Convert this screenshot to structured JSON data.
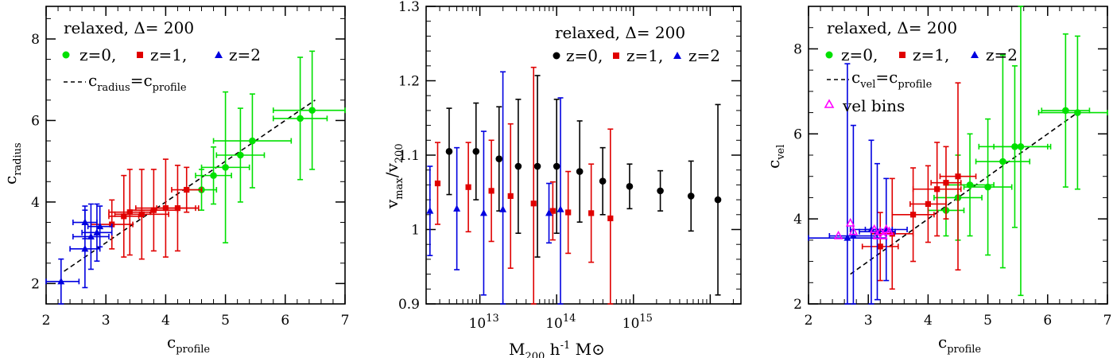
{
  "chart_data": [
    {
      "id": "left",
      "type": "scatter",
      "xlabel": "c_profile",
      "ylabel": "c_radius",
      "xlim": [
        2,
        7
      ],
      "ylim": [
        1.5,
        8.8
      ],
      "xticks": [
        2,
        3,
        4,
        5,
        6,
        7
      ],
      "yticks": [
        2,
        4,
        6,
        8
      ],
      "legend": {
        "title": "relaxed, Δ= 200",
        "entries": [
          "z=0,",
          "z=1,",
          "z=2"
        ],
        "line_label_main": "c",
        "line_label_sub1": "radius",
        "line_label_eq": "=c",
        "line_label_sub2": "profile"
      },
      "reference_line": {
        "x": [
          2.3,
          6.5
        ],
        "y": [
          2.3,
          6.5
        ]
      },
      "series": [
        {
          "name": "z=0",
          "color": "#00e000",
          "marker": "circle",
          "points": [
            {
              "x": 4.6,
              "y": 4.3,
              "xerr": 0.25,
              "yerr": 0.5
            },
            {
              "x": 4.8,
              "y": 4.65,
              "xerr": 0.3,
              "yerr": 0.7
            },
            {
              "x": 5.0,
              "y": 4.85,
              "xerr": 0.4,
              "yerr": 1.85
            },
            {
              "x": 5.25,
              "y": 5.15,
              "xerr": 0.4,
              "yerr": 1.15
            },
            {
              "x": 5.45,
              "y": 5.5,
              "xerr": 0.65,
              "yerr": 1.15
            },
            {
              "x": 6.25,
              "y": 6.05,
              "xerr": 0.45,
              "yerr": 1.5
            },
            {
              "x": 6.45,
              "y": 6.25,
              "xerr": 0.65,
              "yerr": 1.45
            }
          ]
        },
        {
          "name": "z=1",
          "color": "#e00000",
          "marker": "square",
          "points": [
            {
              "x": 3.1,
              "y": 3.45,
              "xerr": 0.35,
              "yerr": 0.6
            },
            {
              "x": 3.3,
              "y": 3.65,
              "xerr": 0.25,
              "yerr": 1.0
            },
            {
              "x": 3.4,
              "y": 3.75,
              "xerr": 0.35,
              "yerr": 1.05
            },
            {
              "x": 3.6,
              "y": 3.7,
              "xerr": 0.45,
              "yerr": 1.1
            },
            {
              "x": 3.8,
              "y": 3.8,
              "xerr": 0.4,
              "yerr": 1.0
            },
            {
              "x": 4.0,
              "y": 3.85,
              "xerr": 0.5,
              "yerr": 1.2
            },
            {
              "x": 4.2,
              "y": 3.85,
              "xerr": 0.35,
              "yerr": 1.05
            },
            {
              "x": 4.35,
              "y": 4.3,
              "xerr": 0.25,
              "yerr": 0.55
            }
          ]
        },
        {
          "name": "z=2",
          "color": "#0000e0",
          "marker": "triangle",
          "points": [
            {
              "x": 2.25,
              "y": 2.05,
              "xerr": 0.3,
              "yerr": 0.55
            },
            {
              "x": 2.65,
              "y": 2.85,
              "xerr": 0.25,
              "yerr": 0.95
            },
            {
              "x": 2.75,
              "y": 3.15,
              "xerr": 0.3,
              "yerr": 0.8
            },
            {
              "x": 2.85,
              "y": 3.25,
              "xerr": 0.25,
              "yerr": 0.7
            },
            {
              "x": 2.65,
              "y": 3.5,
              "xerr": 0.2,
              "yerr": 0.4
            },
            {
              "x": 2.9,
              "y": 3.4,
              "xerr": 0.2,
              "yerr": 0.5
            }
          ]
        }
      ]
    },
    {
      "id": "middle",
      "type": "scatter",
      "xscale": "log",
      "xlabel_main": "M",
      "xlabel_sub": "200",
      "xlabel_rest": " h",
      "xlabel_sup": "-1",
      "xlabel_unit": " M⊙",
      "ylabel": "v_max/v_200",
      "xlim_log10": [
        12.3,
        16.4
      ],
      "ylim": [
        0.9,
        1.3
      ],
      "xtick_base": "10",
      "xtick_exps": [
        "13",
        "14",
        "15"
      ],
      "yticks": [
        "0.9",
        "1",
        "1.1",
        "1.2",
        "1.3"
      ],
      "legend": {
        "title": "relaxed, Δ= 200",
        "entries": [
          "z=0,",
          "z=1,",
          "z=2"
        ]
      },
      "series": [
        {
          "name": "z=0",
          "color": "#000000",
          "marker": "circle",
          "points": [
            {
              "log10x": 12.6,
              "y": 1.105,
              "yerr": 0.058
            },
            {
              "log10x": 12.95,
              "y": 1.105,
              "yerr": 0.065
            },
            {
              "log10x": 13.25,
              "y": 1.095,
              "yerr": 0.07
            },
            {
              "log10x": 13.5,
              "y": 1.085,
              "yerr": 0.09
            },
            {
              "log10x": 13.75,
              "y": 1.085,
              "yerr": 0.122
            },
            {
              "log10x": 14.0,
              "y": 1.085,
              "yerr": 0.09
            },
            {
              "log10x": 14.3,
              "y": 1.078,
              "yerr": 0.068
            },
            {
              "log10x": 14.6,
              "y": 1.065,
              "yerr": 0.045
            },
            {
              "log10x": 14.95,
              "y": 1.058,
              "yerr": 0.03
            },
            {
              "log10x": 15.35,
              "y": 1.052,
              "yerr": 0.027
            },
            {
              "log10x": 15.75,
              "y": 1.045,
              "yerr": 0.047
            },
            {
              "log10x": 16.1,
              "y": 1.04,
              "yerr": 0.128
            }
          ]
        },
        {
          "name": "z=1",
          "color": "#e00000",
          "marker": "square",
          "points": [
            {
              "log10x": 12.45,
              "y": 1.062,
              "yerr": 0.055
            },
            {
              "log10x": 12.85,
              "y": 1.057,
              "yerr": 0.06
            },
            {
              "log10x": 13.15,
              "y": 1.052,
              "yerr": 0.068
            },
            {
              "log10x": 13.4,
              "y": 1.045,
              "yerr": 0.097
            },
            {
              "log10x": 13.7,
              "y": 1.035,
              "yerr": 0.183
            },
            {
              "log10x": 13.95,
              "y": 1.025,
              "yerr": 0.039
            },
            {
              "log10x": 14.15,
              "y": 1.023,
              "yerr": 0.055
            },
            {
              "log10x": 14.45,
              "y": 1.022,
              "yerr": 0.066
            },
            {
              "log10x": 14.7,
              "y": 1.015,
              "yerr": 0.12
            }
          ]
        },
        {
          "name": "z=2",
          "color": "#0000e0",
          "marker": "triangle",
          "points": [
            {
              "log10x": 12.35,
              "y": 1.025,
              "yerr": 0.06
            },
            {
              "log10x": 12.7,
              "y": 1.028,
              "yerr": 0.082
            },
            {
              "log10x": 13.05,
              "y": 1.022,
              "yerr": 0.11
            },
            {
              "log10x": 13.3,
              "y": 1.027,
              "yerr": 0.185
            },
            {
              "log10x": 13.9,
              "y": 1.022,
              "yerr": 0.04
            },
            {
              "log10x": 14.05,
              "y": 1.027,
              "yerr": 0.15
            }
          ]
        }
      ]
    },
    {
      "id": "right",
      "type": "scatter",
      "xlabel": "c_profile",
      "ylabel": "c_vel",
      "xlim": [
        2,
        7
      ],
      "ylim": [
        2,
        9
      ],
      "xticks": [
        2,
        3,
        4,
        5,
        6,
        7
      ],
      "yticks": [
        2,
        4,
        6,
        8
      ],
      "legend": {
        "title": "relaxed, Δ= 200",
        "entries": [
          "z=0,",
          "z=1,",
          "z=2"
        ],
        "line_label_main": "c",
        "line_label_sub1": "vel",
        "line_label_eq": "=c",
        "line_label_sub2": "profile",
        "extra_entry": "vel bins"
      },
      "reference_line": {
        "x": [
          2.7,
          6.5
        ],
        "y": [
          2.7,
          6.5
        ]
      },
      "series": [
        {
          "name": "z=0",
          "color": "#00e000",
          "marker": "circle",
          "points": [
            {
              "x": 4.3,
              "y": 4.2,
              "xerr": 0.3,
              "yerr": 0.6
            },
            {
              "x": 4.5,
              "y": 4.5,
              "xerr": 0.4,
              "yerr": 1.0
            },
            {
              "x": 4.7,
              "y": 4.8,
              "xerr": 0.4,
              "yerr": 1.2
            },
            {
              "x": 5.0,
              "y": 4.75,
              "xerr": 0.4,
              "yerr": 1.6
            },
            {
              "x": 5.25,
              "y": 5.35,
              "xerr": 0.45,
              "yerr": 2.5
            },
            {
              "x": 5.45,
              "y": 5.7,
              "xerr": 0.6,
              "yerr": 1.9
            },
            {
              "x": 5.55,
              "y": 5.7,
              "xerr": 0.45,
              "yerr": 3.5
            },
            {
              "x": 6.3,
              "y": 6.55,
              "xerr": 0.4,
              "yerr": 1.8
            },
            {
              "x": 6.5,
              "y": 6.5,
              "xerr": 0.65,
              "yerr": 1.8
            }
          ]
        },
        {
          "name": "z=1",
          "color": "#e00000",
          "marker": "square",
          "points": [
            {
              "x": 3.2,
              "y": 3.35,
              "xerr": 0.3,
              "yerr": 0.8
            },
            {
              "x": 3.4,
              "y": 3.65,
              "xerr": 0.35,
              "yerr": 1.3
            },
            {
              "x": 3.75,
              "y": 4.1,
              "xerr": 0.35,
              "yerr": 1.1
            },
            {
              "x": 4.0,
              "y": 4.35,
              "xerr": 0.3,
              "yerr": 0.9
            },
            {
              "x": 4.15,
              "y": 4.7,
              "xerr": 0.4,
              "yerr": 1.1
            },
            {
              "x": 4.3,
              "y": 4.85,
              "xerr": 0.25,
              "yerr": 0.85
            },
            {
              "x": 4.5,
              "y": 5.0,
              "xerr": 0.3,
              "yerr": 2.2
            }
          ]
        },
        {
          "name": "z=2",
          "color": "#0000e0",
          "marker": "triangle",
          "points": [
            {
              "x": 2.65,
              "y": 3.55,
              "xerr": 0.65,
              "yerr": 4.1
            },
            {
              "x": 2.75,
              "y": 3.6,
              "xerr": 0.4,
              "yerr": 2.6
            },
            {
              "x": 3.05,
              "y": 3.75,
              "xerr": 0.35,
              "yerr": 2.1
            },
            {
              "x": 3.15,
              "y": 3.7,
              "xerr": 0.3,
              "yerr": 1.6
            },
            {
              "x": 3.3,
              "y": 3.75,
              "xerr": 0.35,
              "yerr": 1.2
            }
          ]
        },
        {
          "name": "vel bins",
          "color": "#ff00ff",
          "marker": "open-triangle",
          "points": [
            {
              "x": 2.5,
              "y": 3.6
            },
            {
              "x": 2.7,
              "y": 3.9
            },
            {
              "x": 2.75,
              "y": 3.7
            },
            {
              "x": 3.1,
              "y": 3.75
            },
            {
              "x": 3.15,
              "y": 3.6
            },
            {
              "x": 3.2,
              "y": 3.7
            },
            {
              "x": 3.25,
              "y": 3.6
            },
            {
              "x": 3.3,
              "y": 3.75
            },
            {
              "x": 3.35,
              "y": 3.7
            }
          ]
        }
      ]
    }
  ]
}
